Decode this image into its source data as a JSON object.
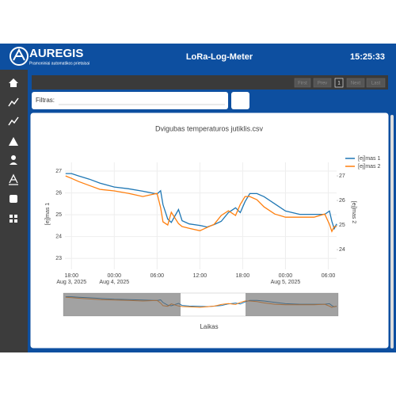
{
  "header": {
    "logo": "AUREGIS",
    "logo_subtitle": "Pramoniniai automatikos prietaisai",
    "app_title": "LoRa-Log-Meter",
    "clock": "15:25:33"
  },
  "pagination": {
    "buttons": [
      "First",
      "Prev",
      "1",
      "Next",
      "Last"
    ]
  },
  "filter": {
    "label": "Filtras:"
  },
  "chart_data": {
    "type": "line",
    "title": "Dvigubas temperaturos jutiklis.csv",
    "x_label": "Laikas",
    "y_label": "[ej]mas 1",
    "y2_label": "[ej]mas 2",
    "x": [
      "2025-08-03 17:10",
      "2025-08-03 18:00",
      "2025-08-03 19:00",
      "2025-08-03 20:30",
      "2025-08-03 22:00",
      "2025-08-04 00:00",
      "2025-08-04 02:00",
      "2025-08-04 04:00",
      "2025-08-04 06:00",
      "2025-08-04 06:30",
      "2025-08-04 06:50",
      "2025-08-04 07:30",
      "2025-08-04 08:00",
      "2025-08-04 09:00",
      "2025-08-04 09:30",
      "2025-08-04 10:30",
      "2025-08-04 12:00",
      "2025-08-04 13:00",
      "2025-08-04 14:00",
      "2025-08-04 15:00",
      "2025-08-04 16:00",
      "2025-08-04 17:00",
      "2025-08-04 17:40",
      "2025-08-04 18:20",
      "2025-08-04 19:00",
      "2025-08-04 20:00",
      "2025-08-04 21:00",
      "2025-08-04 22:30",
      "2025-08-05 00:00",
      "2025-08-05 02:00",
      "2025-08-05 04:00",
      "2025-08-05 05:30",
      "2025-08-05 06:10",
      "2025-08-05 06:30",
      "2025-08-05 06:50",
      "2025-08-05 07:10"
    ],
    "series": [
      {
        "name": "[ej]mas 1",
        "color": "#1f77b4",
        "axis": "y",
        "values": [
          26.89,
          26.89,
          26.78,
          26.63,
          26.45,
          26.27,
          26.19,
          26.08,
          25.95,
          26.1,
          25.46,
          24.8,
          24.65,
          25.24,
          24.73,
          24.58,
          24.51,
          24.44,
          24.55,
          24.7,
          25.1,
          25.32,
          25.1,
          25.6,
          25.97,
          25.97,
          25.83,
          25.5,
          25.17,
          25.02,
          25.02,
          25.02,
          25.17,
          24.7,
          24.36,
          24.58
        ]
      },
      {
        "name": "[ej]mas 2",
        "color": "#ff7f0e",
        "axis": "y2",
        "values": [
          27.0,
          26.9,
          26.77,
          26.61,
          26.45,
          26.39,
          26.29,
          26.16,
          26.29,
          25.71,
          25.13,
          25.0,
          25.52,
          25.06,
          24.94,
          24.87,
          24.77,
          24.9,
          25.03,
          25.39,
          25.58,
          25.39,
          25.84,
          26.16,
          26.16,
          26.03,
          25.74,
          25.45,
          25.32,
          25.32,
          25.32,
          25.45,
          25.03,
          24.74,
          24.94,
          24.94
        ]
      }
    ],
    "xlim": [
      "2025-08-03 17:05",
      "2025-08-05 07:10"
    ],
    "xticks": [
      {
        "value": "2025-08-03 18:00",
        "label": "18:00\nAug 3, 2025"
      },
      {
        "value": "2025-08-04 00:00",
        "label": "00:00\nAug 4, 2025"
      },
      {
        "value": "2025-08-04 06:00",
        "label": "06:00"
      },
      {
        "value": "2025-08-04 12:00",
        "label": "12:00"
      },
      {
        "value": "2025-08-04 18:00",
        "label": "18:00"
      },
      {
        "value": "2025-08-05 00:00",
        "label": "00:00\nAug 5, 2025"
      },
      {
        "value": "2025-08-05 06:00",
        "label": "06:00"
      }
    ],
    "ylim": [
      22.5,
      27.4
    ],
    "yticks": [
      23,
      24,
      25,
      26,
      27
    ],
    "y2lim": [
      23.2,
      27.55
    ],
    "y2ticks": [
      24,
      25,
      26,
      27
    ],
    "grid": true,
    "legend": "top-right",
    "range_slider": true
  }
}
